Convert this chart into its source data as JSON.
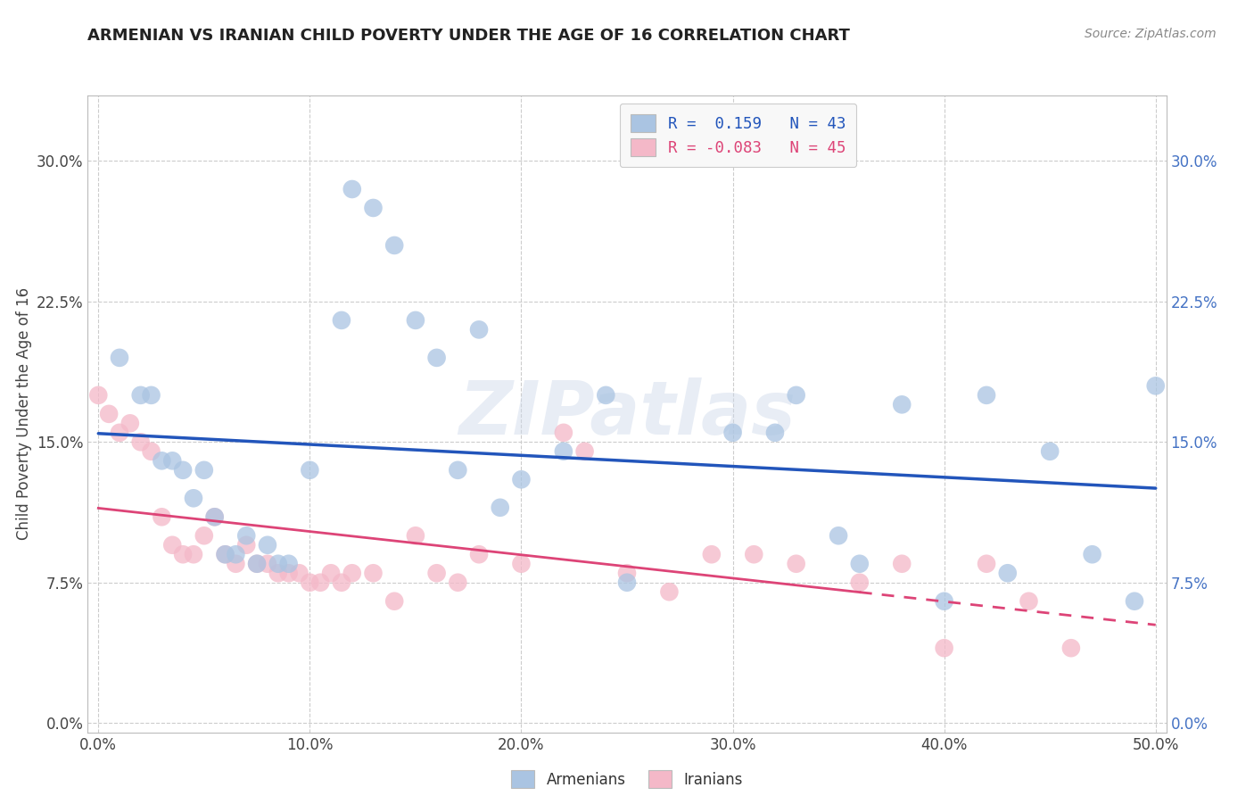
{
  "title": "ARMENIAN VS IRANIAN CHILD POVERTY UNDER THE AGE OF 16 CORRELATION CHART",
  "source": "Source: ZipAtlas.com",
  "ylabel": "Child Poverty Under the Age of 16",
  "xlim": [
    -0.005,
    0.505
  ],
  "ylim": [
    -0.005,
    0.335
  ],
  "ytick_vals": [
    0.0,
    0.075,
    0.15,
    0.225,
    0.3
  ],
  "ytick_labels": [
    "0.0%",
    "7.5%",
    "15.0%",
    "22.5%",
    "30.0%"
  ],
  "xtick_vals": [
    0.0,
    0.1,
    0.2,
    0.3,
    0.4,
    0.5
  ],
  "xtick_labels": [
    "0.0%",
    "10.0%",
    "20.0%",
    "30.0%",
    "40.0%",
    "50.0%"
  ],
  "armenian_R": 0.159,
  "armenian_N": 43,
  "iranian_R": -0.083,
  "iranian_N": 45,
  "armenian_color": "#aac4e2",
  "iranian_color": "#f4b8c8",
  "armenian_line_color": "#2255bb",
  "iranian_line_color": "#dd4477",
  "watermark": "ZIPatlas",
  "arm_x": [
    0.01,
    0.02,
    0.025,
    0.03,
    0.035,
    0.04,
    0.045,
    0.05,
    0.055,
    0.06,
    0.065,
    0.07,
    0.075,
    0.08,
    0.085,
    0.09,
    0.1,
    0.115,
    0.12,
    0.13,
    0.14,
    0.15,
    0.16,
    0.17,
    0.18,
    0.19,
    0.2,
    0.22,
    0.24,
    0.25,
    0.3,
    0.32,
    0.33,
    0.35,
    0.36,
    0.38,
    0.4,
    0.42,
    0.43,
    0.45,
    0.47,
    0.49,
    0.5
  ],
  "arm_y": [
    0.195,
    0.175,
    0.175,
    0.14,
    0.14,
    0.135,
    0.12,
    0.135,
    0.11,
    0.09,
    0.09,
    0.1,
    0.085,
    0.095,
    0.085,
    0.085,
    0.135,
    0.215,
    0.285,
    0.275,
    0.255,
    0.215,
    0.195,
    0.135,
    0.21,
    0.115,
    0.13,
    0.145,
    0.175,
    0.075,
    0.155,
    0.155,
    0.175,
    0.1,
    0.085,
    0.17,
    0.065,
    0.175,
    0.08,
    0.145,
    0.09,
    0.065,
    0.18
  ],
  "ira_x": [
    0.0,
    0.005,
    0.01,
    0.015,
    0.02,
    0.025,
    0.03,
    0.035,
    0.04,
    0.045,
    0.05,
    0.055,
    0.06,
    0.065,
    0.07,
    0.075,
    0.08,
    0.085,
    0.09,
    0.095,
    0.1,
    0.105,
    0.11,
    0.115,
    0.12,
    0.13,
    0.14,
    0.15,
    0.16,
    0.17,
    0.18,
    0.2,
    0.22,
    0.23,
    0.25,
    0.27,
    0.29,
    0.31,
    0.33,
    0.36,
    0.38,
    0.4,
    0.42,
    0.44,
    0.46
  ],
  "ira_y": [
    0.175,
    0.165,
    0.155,
    0.16,
    0.15,
    0.145,
    0.11,
    0.095,
    0.09,
    0.09,
    0.1,
    0.11,
    0.09,
    0.085,
    0.095,
    0.085,
    0.085,
    0.08,
    0.08,
    0.08,
    0.075,
    0.075,
    0.08,
    0.075,
    0.08,
    0.08,
    0.065,
    0.1,
    0.08,
    0.075,
    0.09,
    0.085,
    0.155,
    0.145,
    0.08,
    0.07,
    0.09,
    0.09,
    0.085,
    0.075,
    0.085,
    0.04,
    0.085,
    0.065,
    0.04
  ]
}
